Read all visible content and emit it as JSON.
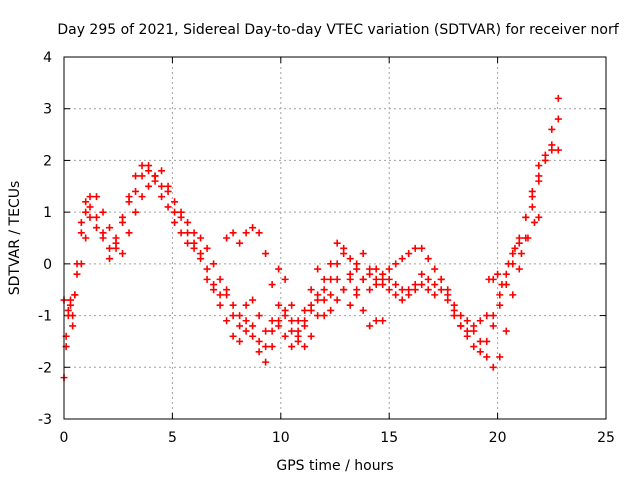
{
  "chart_data": {
    "type": "scatter",
    "title": "Day 295 of 2021, Sidereal Day-to-day VTEC variation (SDTVAR) for receiver norf",
    "xlabel": "GPS time / hours",
    "ylabel": "SDTVAR / TECUs",
    "xlim": [
      0,
      25
    ],
    "ylim": [
      -3,
      4
    ],
    "xticks": [
      0,
      5,
      10,
      15,
      20,
      25
    ],
    "yticks": [
      -3,
      -2,
      -1,
      0,
      1,
      2,
      3,
      4
    ],
    "xtick_labels": [
      "0",
      "5",
      "10",
      "15",
      "20",
      "25"
    ],
    "ytick_labels": [
      "-3",
      "-2",
      "-1",
      "0",
      "1",
      "2",
      "3",
      "4"
    ],
    "grid": true,
    "marker": "plus",
    "series": [
      {
        "name": "track-a",
        "color": "#ff0000",
        "points": [
          [
            0.0,
            -0.7
          ],
          [
            0.1,
            -1.4
          ],
          [
            0.2,
            -1.0
          ],
          [
            0.3,
            -0.7
          ],
          [
            0.4,
            -1.2
          ],
          [
            0.5,
            -0.6
          ],
          [
            0.6,
            0.0
          ],
          [
            0.8,
            0.8
          ],
          [
            1.0,
            1.2
          ],
          [
            1.2,
            0.9
          ],
          [
            1.5,
            0.7
          ],
          [
            1.8,
            0.5
          ],
          [
            2.1,
            0.1
          ],
          [
            2.4,
            0.4
          ],
          [
            2.7,
            0.8
          ],
          [
            3.0,
            1.2
          ],
          [
            3.3,
            1.7
          ],
          [
            3.6,
            1.9
          ],
          [
            3.9,
            1.8
          ],
          [
            4.2,
            1.7
          ],
          [
            4.5,
            1.5
          ],
          [
            4.8,
            1.1
          ],
          [
            5.1,
            0.8
          ],
          [
            5.4,
            0.6
          ],
          [
            5.7,
            0.4
          ],
          [
            6.0,
            0.3
          ],
          [
            6.3,
            0.1
          ],
          [
            6.6,
            -0.3
          ],
          [
            6.9,
            -0.5
          ],
          [
            7.2,
            -0.8
          ],
          [
            7.5,
            -1.1
          ],
          [
            7.8,
            -1.4
          ],
          [
            8.1,
            -1.5
          ],
          [
            8.4,
            -1.3
          ],
          [
            8.7,
            -1.4
          ],
          [
            9.0,
            -1.7
          ],
          [
            9.3,
            -1.9
          ],
          [
            9.6,
            -1.6
          ],
          [
            9.9,
            -1.2
          ],
          [
            10.2,
            -0.9
          ],
          [
            10.5,
            -1.1
          ],
          [
            10.8,
            -1.3
          ],
          [
            11.1,
            -1.1
          ],
          [
            11.4,
            -0.8
          ],
          [
            11.7,
            -0.6
          ],
          [
            12.0,
            -0.5
          ],
          [
            12.3,
            -0.3
          ],
          [
            12.6,
            0.0
          ],
          [
            12.9,
            0.2
          ],
          [
            13.2,
            0.1
          ],
          [
            13.5,
            -0.1
          ],
          [
            13.8,
            -0.3
          ],
          [
            14.1,
            -0.2
          ],
          [
            14.4,
            -0.1
          ],
          [
            14.7,
            -0.2
          ],
          [
            15.0,
            -0.1
          ],
          [
            15.3,
            0.0
          ],
          [
            15.6,
            0.1
          ],
          [
            15.9,
            0.2
          ],
          [
            16.2,
            0.3
          ],
          [
            16.5,
            0.3
          ],
          [
            16.8,
            0.1
          ],
          [
            17.1,
            -0.1
          ],
          [
            17.4,
            -0.3
          ],
          [
            17.7,
            -0.6
          ],
          [
            18.0,
            -0.9
          ],
          [
            18.3,
            -1.2
          ],
          [
            18.6,
            -1.4
          ],
          [
            18.9,
            -1.6
          ],
          [
            19.2,
            -1.7
          ],
          [
            19.5,
            -1.8
          ],
          [
            19.8,
            -2.0
          ],
          [
            20.1,
            -1.8
          ],
          [
            20.4,
            -1.3
          ],
          [
            20.7,
            -0.6
          ],
          [
            21.0,
            -0.1
          ],
          [
            21.3,
            0.5
          ],
          [
            21.6,
            1.1
          ],
          [
            21.9,
            1.6
          ],
          [
            22.2,
            2.1
          ],
          [
            22.5,
            2.6
          ],
          [
            22.8,
            3.2
          ]
        ]
      },
      {
        "name": "track-b",
        "color": "#ff0000",
        "points": [
          [
            0.0,
            -2.2
          ],
          [
            0.1,
            -1.6
          ],
          [
            0.2,
            -0.9
          ],
          [
            0.3,
            -0.8
          ],
          [
            0.4,
            -1.0
          ],
          [
            0.5,
            -0.6
          ],
          [
            0.6,
            -0.2
          ],
          [
            0.8,
            0.6
          ],
          [
            1.0,
            1.0
          ],
          [
            1.2,
            1.3
          ],
          [
            1.5,
            0.9
          ],
          [
            1.8,
            0.6
          ],
          [
            2.1,
            0.3
          ],
          [
            2.4,
            0.5
          ],
          [
            2.7,
            0.9
          ],
          [
            3.0,
            1.3
          ],
          [
            3.3,
            1.4
          ],
          [
            3.6,
            1.7
          ],
          [
            3.9,
            1.9
          ],
          [
            4.2,
            1.6
          ],
          [
            4.5,
            1.3
          ],
          [
            4.8,
            1.4
          ],
          [
            5.1,
            1.0
          ],
          [
            5.4,
            0.9
          ],
          [
            5.7,
            0.6
          ],
          [
            6.0,
            0.4
          ],
          [
            6.3,
            0.2
          ],
          [
            6.6,
            -0.1
          ],
          [
            6.9,
            -0.4
          ],
          [
            7.2,
            -0.6
          ],
          [
            7.5,
            -0.5
          ],
          [
            7.8,
            -0.8
          ],
          [
            8.1,
            -1.0
          ],
          [
            8.4,
            -0.8
          ],
          [
            8.7,
            -0.7
          ],
          [
            9.0,
            -1.0
          ],
          [
            9.3,
            -1.3
          ],
          [
            9.6,
            -1.1
          ],
          [
            9.9,
            -0.8
          ],
          [
            10.2,
            -1.0
          ],
          [
            10.5,
            -1.3
          ],
          [
            10.8,
            -1.5
          ],
          [
            11.1,
            -1.6
          ],
          [
            11.4,
            -1.4
          ],
          [
            11.7,
            -1.0
          ],
          [
            12.0,
            -0.7
          ],
          [
            12.3,
            -0.6
          ],
          [
            12.6,
            -0.3
          ],
          [
            12.9,
            -0.5
          ],
          [
            13.2,
            -0.8
          ],
          [
            13.5,
            -0.6
          ],
          [
            13.8,
            -0.3
          ],
          [
            14.1,
            -0.5
          ],
          [
            14.4,
            -0.4
          ],
          [
            14.7,
            -0.3
          ],
          [
            15.0,
            -0.3
          ],
          [
            15.3,
            -0.4
          ],
          [
            15.6,
            -0.5
          ],
          [
            15.9,
            -0.6
          ],
          [
            16.2,
            -0.5
          ],
          [
            16.5,
            -0.4
          ],
          [
            16.8,
            -0.5
          ],
          [
            17.1,
            -0.6
          ],
          [
            17.4,
            -0.3
          ],
          [
            17.7,
            -0.5
          ],
          [
            18.0,
            -0.8
          ],
          [
            18.3,
            -1.0
          ],
          [
            18.6,
            -1.1
          ],
          [
            18.9,
            -1.3
          ],
          [
            19.2,
            -1.5
          ],
          [
            19.5,
            -1.5
          ],
          [
            19.8,
            -1.2
          ],
          [
            20.1,
            -0.8
          ],
          [
            20.4,
            -0.4
          ],
          [
            20.7,
            0.0
          ],
          [
            21.0,
            0.4
          ],
          [
            21.3,
            0.9
          ],
          [
            21.6,
            1.3
          ],
          [
            21.9,
            1.7
          ],
          [
            22.2,
            2.0
          ],
          [
            22.5,
            2.3
          ],
          [
            22.8,
            2.8
          ]
        ]
      },
      {
        "name": "track-c",
        "color": "#ff0000",
        "points": [
          [
            0.8,
            0.0
          ],
          [
            1.0,
            0.5
          ],
          [
            1.2,
            1.1
          ],
          [
            1.5,
            1.3
          ],
          [
            1.8,
            1.0
          ],
          [
            2.1,
            0.7
          ],
          [
            2.4,
            0.3
          ],
          [
            2.7,
            0.2
          ],
          [
            3.0,
            0.6
          ],
          [
            3.3,
            1.0
          ],
          [
            3.6,
            1.3
          ],
          [
            3.9,
            1.5
          ],
          [
            4.2,
            1.7
          ],
          [
            4.5,
            1.8
          ],
          [
            4.8,
            1.5
          ],
          [
            5.1,
            1.2
          ],
          [
            5.4,
            1.0
          ],
          [
            5.7,
            0.8
          ],
          [
            6.0,
            0.6
          ],
          [
            6.3,
            0.5
          ],
          [
            6.6,
            0.3
          ],
          [
            6.9,
            0.0
          ],
          [
            7.2,
            -0.3
          ],
          [
            7.5,
            -0.6
          ],
          [
            7.8,
            -1.0
          ],
          [
            8.1,
            -1.2
          ],
          [
            8.4,
            -1.1
          ],
          [
            8.7,
            -1.2
          ],
          [
            9.0,
            -1.5
          ],
          [
            9.3,
            -1.6
          ],
          [
            9.6,
            -1.3
          ],
          [
            9.9,
            -1.1
          ],
          [
            10.2,
            -1.4
          ],
          [
            10.5,
            -1.6
          ],
          [
            10.8,
            -1.4
          ],
          [
            11.1,
            -1.2
          ],
          [
            11.4,
            -0.9
          ],
          [
            11.7,
            -0.7
          ],
          [
            12.0,
            -1.0
          ],
          [
            12.3,
            -0.9
          ],
          [
            12.6,
            -0.7
          ],
          [
            12.9,
            -0.5
          ],
          [
            13.2,
            -0.3
          ],
          [
            13.5,
            0.0
          ],
          [
            13.8,
            0.2
          ],
          [
            14.1,
            -0.1
          ],
          [
            14.4,
            -0.3
          ],
          [
            14.7,
            -0.4
          ],
          [
            15.0,
            -0.5
          ],
          [
            15.3,
            -0.6
          ],
          [
            15.6,
            -0.7
          ],
          [
            15.9,
            -0.5
          ],
          [
            16.2,
            -0.4
          ],
          [
            16.5,
            -0.2
          ],
          [
            16.8,
            -0.3
          ],
          [
            17.1,
            -0.4
          ],
          [
            17.4,
            -0.5
          ],
          [
            17.7,
            -0.7
          ],
          [
            18.0,
            -1.0
          ],
          [
            18.3,
            -1.2
          ],
          [
            18.6,
            -1.3
          ],
          [
            18.9,
            -1.2
          ],
          [
            19.2,
            -1.1
          ],
          [
            19.5,
            -1.0
          ],
          [
            19.8,
            -1.0
          ],
          [
            20.1,
            -0.6
          ],
          [
            20.4,
            -0.2
          ],
          [
            20.7,
            0.2
          ],
          [
            21.0,
            0.5
          ],
          [
            21.3,
            0.9
          ],
          [
            21.6,
            1.4
          ],
          [
            21.9,
            1.9
          ],
          [
            22.2,
            2.1
          ],
          [
            22.5,
            2.2
          ],
          [
            22.8,
            2.2
          ]
        ]
      },
      {
        "name": "track-d",
        "color": "#ff0000",
        "points": [
          [
            7.5,
            0.5
          ],
          [
            7.8,
            0.6
          ],
          [
            8.1,
            0.4
          ],
          [
            8.4,
            0.6
          ],
          [
            8.7,
            0.7
          ],
          [
            9.0,
            0.6
          ],
          [
            9.3,
            0.2
          ],
          [
            9.6,
            -0.4
          ],
          [
            9.9,
            -0.1
          ],
          [
            10.2,
            -0.3
          ],
          [
            10.5,
            -0.8
          ],
          [
            10.8,
            -1.1
          ],
          [
            11.1,
            -0.9
          ],
          [
            11.4,
            -0.5
          ],
          [
            11.7,
            -0.1
          ],
          [
            12.0,
            -0.3
          ],
          [
            12.3,
            0.0
          ],
          [
            12.6,
            0.4
          ],
          [
            12.9,
            0.3
          ],
          [
            13.2,
            -0.2
          ],
          [
            13.5,
            -0.5
          ],
          [
            13.8,
            -0.9
          ],
          [
            14.1,
            -1.2
          ],
          [
            14.4,
            -1.1
          ],
          [
            14.7,
            -1.1
          ]
        ]
      },
      {
        "name": "track-e",
        "color": "#ff0000",
        "points": [
          [
            19.6,
            -0.3
          ],
          [
            19.8,
            -0.3
          ],
          [
            20.0,
            -0.2
          ],
          [
            20.2,
            -0.4
          ],
          [
            20.5,
            0.0
          ],
          [
            20.8,
            0.3
          ],
          [
            21.1,
            0.2
          ],
          [
            21.4,
            0.5
          ],
          [
            21.7,
            0.8
          ],
          [
            21.9,
            0.9
          ]
        ]
      }
    ]
  }
}
